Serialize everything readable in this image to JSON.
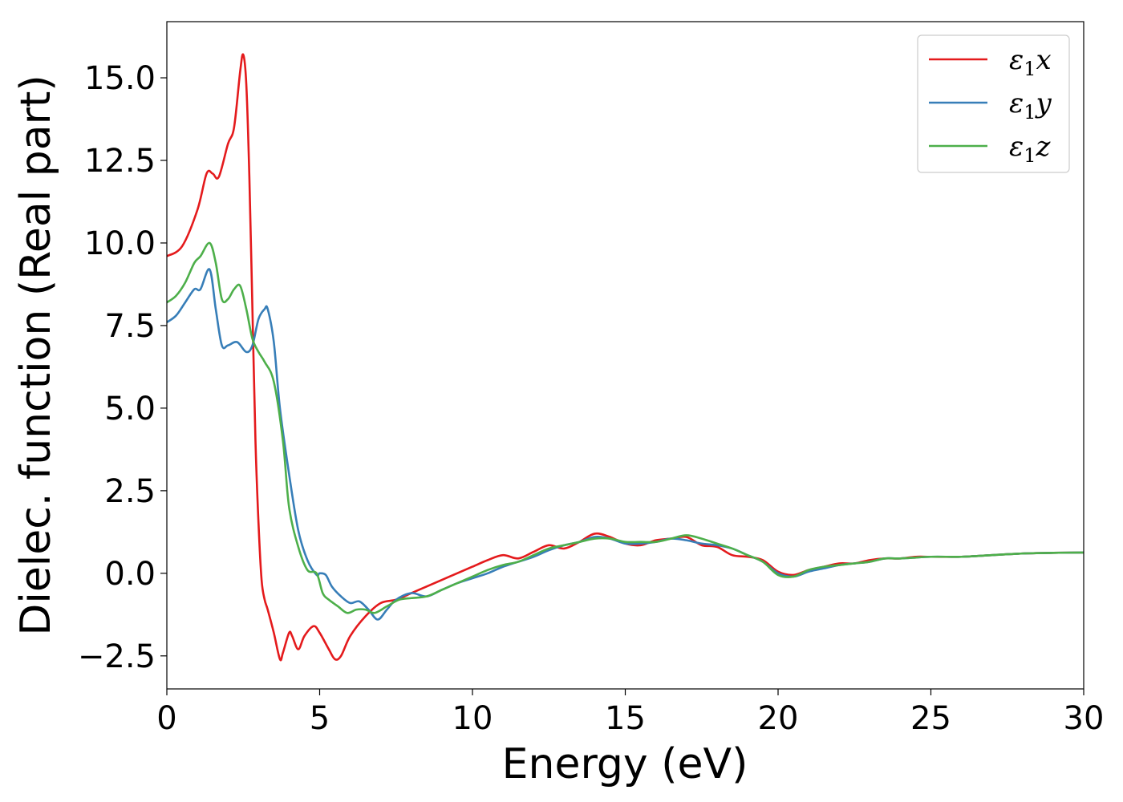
{
  "chart_data": {
    "type": "line",
    "title": "",
    "xlabel": "Energy (eV)",
    "ylabel": "Dielec. function (Real part)",
    "xlim": [
      0,
      30
    ],
    "ylim": [
      -3.5,
      16.7
    ],
    "x_ticks": [
      0,
      5,
      10,
      15,
      20,
      25,
      30
    ],
    "x_tick_labels": [
      "0",
      "5",
      "10",
      "15",
      "20",
      "25",
      "30"
    ],
    "y_ticks": [
      -2.5,
      0.0,
      2.5,
      5.0,
      7.5,
      10.0,
      12.5,
      15.0
    ],
    "y_tick_labels": [
      "−2.5",
      "0.0",
      "2.5",
      "5.0",
      "7.5",
      "10.0",
      "12.5",
      "15.0"
    ],
    "grid": false,
    "legend_position": "top-right",
    "series": [
      {
        "name": "ε₁x",
        "legend_main": "ε",
        "legend_sub": "1",
        "legend_tail": "x",
        "color": "#e41a1c",
        "x": [
          0,
          0.5,
          1.0,
          1.3,
          1.5,
          1.7,
          2.0,
          2.2,
          2.4,
          2.5,
          2.6,
          2.7,
          2.8,
          2.9,
          3.0,
          3.1,
          3.2,
          3.3,
          3.5,
          3.7,
          3.8,
          4.0,
          4.1,
          4.3,
          4.5,
          4.8,
          5.0,
          5.3,
          5.5,
          5.7,
          6.0,
          6.5,
          7.0,
          7.5,
          8.0,
          8.5,
          9.0,
          9.5,
          10.0,
          10.5,
          11.0,
          11.5,
          12.0,
          12.5,
          13.0,
          13.5,
          14.0,
          14.5,
          15.0,
          15.5,
          16.0,
          16.5,
          17.0,
          17.5,
          18.0,
          18.5,
          19.0,
          19.5,
          20.0,
          20.5,
          21.0,
          21.5,
          22.0,
          22.5,
          23.0,
          23.5,
          24.0,
          24.5,
          25.0,
          26.0,
          27.0,
          28.0,
          29.0,
          30.0
        ],
        "values": [
          9.6,
          9.9,
          11.0,
          12.1,
          12.1,
          12.0,
          13.0,
          13.5,
          15.2,
          15.7,
          14.8,
          12.0,
          8.0,
          4.0,
          1.5,
          -0.2,
          -0.8,
          -1.1,
          -1.8,
          -2.6,
          -2.4,
          -1.8,
          -1.9,
          -2.3,
          -1.9,
          -1.6,
          -1.8,
          -2.3,
          -2.6,
          -2.5,
          -1.9,
          -1.3,
          -0.9,
          -0.8,
          -0.6,
          -0.4,
          -0.2,
          0.0,
          0.2,
          0.4,
          0.55,
          0.45,
          0.65,
          0.85,
          0.75,
          0.95,
          1.2,
          1.1,
          0.9,
          0.85,
          1.0,
          1.05,
          1.1,
          0.85,
          0.8,
          0.55,
          0.5,
          0.4,
          0.05,
          -0.05,
          0.1,
          0.2,
          0.3,
          0.3,
          0.4,
          0.45,
          0.45,
          0.5,
          0.5,
          0.5,
          0.55,
          0.6,
          0.62,
          0.63
        ]
      },
      {
        "name": "ε₁y",
        "legend_main": "ε",
        "legend_sub": "1",
        "legend_tail": "y",
        "color": "#377eb8",
        "x": [
          0,
          0.3,
          0.6,
          0.9,
          1.1,
          1.4,
          1.6,
          1.8,
          2.0,
          2.3,
          2.6,
          2.8,
          3.0,
          3.2,
          3.3,
          3.5,
          3.7,
          4.0,
          4.3,
          4.6,
          4.9,
          5.0,
          5.2,
          5.4,
          5.7,
          6.0,
          6.3,
          6.6,
          6.9,
          7.2,
          7.5,
          8.0,
          8.5,
          9.0,
          9.5,
          10.0,
          10.5,
          11.0,
          11.5,
          12.0,
          12.5,
          13.0,
          13.5,
          14.0,
          14.5,
          15.0,
          15.5,
          16.0,
          16.5,
          17.0,
          17.5,
          18.0,
          18.5,
          19.0,
          19.5,
          20.0,
          20.5,
          21.0,
          21.5,
          22.0,
          22.5,
          23.0,
          23.5,
          24.0,
          25.0,
          26.0,
          27.0,
          28.0,
          29.0,
          30.0
        ],
        "values": [
          7.6,
          7.8,
          8.2,
          8.6,
          8.6,
          9.2,
          8.0,
          6.9,
          6.9,
          7.0,
          6.7,
          6.9,
          7.7,
          8.0,
          8.0,
          7.0,
          5.0,
          3.0,
          1.3,
          0.4,
          -0.05,
          0.0,
          -0.05,
          -0.4,
          -0.7,
          -0.9,
          -0.85,
          -1.1,
          -1.4,
          -1.1,
          -0.8,
          -0.6,
          -0.7,
          -0.5,
          -0.3,
          -0.15,
          0.0,
          0.2,
          0.35,
          0.5,
          0.7,
          0.85,
          0.95,
          1.1,
          1.05,
          0.9,
          0.9,
          0.95,
          1.05,
          1.0,
          0.9,
          0.85,
          0.75,
          0.55,
          0.35,
          0.0,
          -0.1,
          0.05,
          0.15,
          0.25,
          0.3,
          0.35,
          0.45,
          0.45,
          0.5,
          0.5,
          0.55,
          0.6,
          0.62,
          0.63
        ]
      },
      {
        "name": "ε₁z",
        "legend_main": "ε",
        "legend_sub": "1",
        "legend_tail": "z",
        "color": "#4daf4a",
        "x": [
          0,
          0.3,
          0.6,
          0.9,
          1.1,
          1.4,
          1.6,
          1.8,
          2.0,
          2.2,
          2.4,
          2.6,
          2.8,
          3.0,
          3.2,
          3.5,
          3.8,
          4.0,
          4.3,
          4.6,
          4.9,
          5.1,
          5.3,
          5.6,
          5.9,
          6.2,
          6.5,
          6.8,
          7.2,
          7.6,
          8.0,
          8.5,
          9.0,
          9.5,
          10.0,
          10.5,
          11.0,
          11.5,
          12.0,
          12.5,
          13.0,
          13.5,
          14.0,
          14.5,
          15.0,
          15.5,
          16.0,
          16.5,
          17.0,
          17.5,
          18.0,
          18.5,
          19.0,
          19.5,
          20.0,
          20.5,
          21.0,
          21.5,
          22.0,
          22.5,
          23.0,
          23.5,
          24.0,
          25.0,
          26.0,
          27.0,
          28.0,
          29.0,
          30.0
        ],
        "values": [
          8.2,
          8.4,
          8.8,
          9.4,
          9.6,
          10.0,
          9.4,
          8.3,
          8.3,
          8.6,
          8.7,
          8.0,
          7.1,
          6.7,
          6.4,
          5.8,
          4.0,
          2.0,
          0.8,
          0.1,
          0.0,
          -0.6,
          -0.8,
          -1.0,
          -1.2,
          -1.1,
          -1.1,
          -1.2,
          -1.0,
          -0.8,
          -0.75,
          -0.7,
          -0.5,
          -0.3,
          -0.1,
          0.1,
          0.25,
          0.35,
          0.55,
          0.75,
          0.85,
          0.95,
          1.05,
          1.05,
          0.95,
          0.95,
          0.95,
          1.05,
          1.15,
          1.05,
          0.9,
          0.75,
          0.55,
          0.35,
          -0.05,
          -0.1,
          0.1,
          0.2,
          0.25,
          0.3,
          0.35,
          0.45,
          0.45,
          0.5,
          0.5,
          0.55,
          0.6,
          0.62,
          0.63
        ]
      }
    ]
  }
}
